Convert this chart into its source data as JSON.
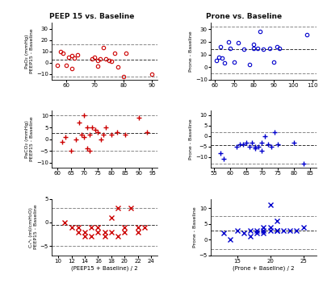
{
  "title_left": "PEEP 15 vs. Baseline",
  "title_right": "Prone vs. Baseline",
  "xlabel_left": "(PEEP15 + Baseline) / 2",
  "xlabel_right": "(Prone + Baseline) / 2",
  "ax00": {
    "x": [
      57,
      58,
      59,
      60,
      61,
      62,
      62,
      63,
      64,
      69,
      70,
      71,
      71,
      72,
      73,
      74,
      75,
      76,
      77,
      78,
      80,
      81,
      90
    ],
    "y": [
      -2,
      10,
      8,
      -2,
      5,
      6,
      -5,
      4,
      7,
      3,
      5,
      2,
      -3,
      3,
      13,
      3,
      2,
      1,
      8,
      -4,
      -12,
      8,
      -10
    ],
    "mean": 2.5,
    "loa_upper": 16.5,
    "loa_lower": -12.0,
    "xlim": [
      55,
      92
    ],
    "ylim": [
      -15,
      35
    ],
    "xticks": [
      60,
      70,
      80,
      90
    ],
    "yticks": [
      -10,
      0,
      10,
      20,
      30
    ],
    "ylabel": "PaO₂ (mmHg)\nPEEP15 - Baseline",
    "marker": "o",
    "color": "#cc0000"
  },
  "ax01": {
    "x": [
      61,
      62,
      63,
      64,
      65,
      67,
      68,
      70,
      72,
      75,
      78,
      80,
      80,
      82,
      83,
      85,
      88,
      90,
      92,
      93,
      107
    ],
    "y": [
      5,
      8,
      16,
      7,
      3,
      20,
      15,
      4,
      19,
      14,
      2,
      18,
      15,
      15,
      28,
      14,
      15,
      4,
      16,
      15,
      26
    ],
    "mean": 14.5,
    "loa_upper": 32.0,
    "loa_lower": -5.0,
    "xlim": [
      58,
      112
    ],
    "ylim": [
      -10,
      35
    ],
    "xticks": [
      60,
      70,
      80,
      90,
      100,
      110
    ],
    "yticks": [
      -10,
      0,
      10,
      20,
      30
    ],
    "ylabel": "Prone - Baseline",
    "marker": "o",
    "color": "#0000cc"
  },
  "ax10": {
    "x": [
      62,
      63,
      65,
      67,
      68,
      69,
      70,
      70,
      71,
      71,
      72,
      72,
      73,
      74,
      75,
      76,
      77,
      78,
      80,
      82,
      85,
      90,
      93
    ],
    "y": [
      -1,
      1,
      -5,
      0,
      7,
      2,
      10,
      1,
      5,
      -4,
      2,
      -5,
      5,
      4,
      3,
      0,
      2,
      5,
      2,
      3,
      2,
      9,
      3
    ],
    "mean": 2.5,
    "loa_upper": 10.0,
    "loa_lower": -5.0,
    "xlim": [
      58,
      97
    ],
    "ylim": [
      -12,
      12
    ],
    "xticks": [
      60,
      65,
      70,
      75,
      80,
      85,
      90,
      95
    ],
    "yticks": [
      -10,
      -5,
      0,
      5,
      10
    ],
    "ylabel": "PaCO₂ (mmHg)\nPEEP15 - Baseline",
    "marker": "+",
    "color": "#cc0000"
  },
  "ax11": {
    "x": [
      57,
      58,
      62,
      63,
      64,
      65,
      66,
      67,
      68,
      68,
      69,
      70,
      70,
      71,
      72,
      73,
      74,
      75,
      80,
      83
    ],
    "y": [
      -8,
      -11,
      -5,
      -4,
      -4,
      -3,
      -5,
      -3,
      -5,
      -6,
      -5,
      -7,
      -3,
      0,
      -4,
      -5,
      2,
      -4,
      -3,
      -13
    ],
    "mean": -4.5,
    "loa_upper": 2.0,
    "loa_lower": -13.0,
    "xlim": [
      54,
      87
    ],
    "ylim": [
      -15,
      12
    ],
    "xticks": [
      55,
      60,
      65,
      70,
      75,
      80,
      85
    ],
    "yticks": [
      -10,
      -5,
      0,
      5,
      10
    ],
    "ylabel": "Prone - Baseline",
    "marker": "+",
    "color": "#0000cc"
  },
  "ax20": {
    "x": [
      11,
      12,
      13,
      13,
      14,
      14,
      15,
      15,
      16,
      16,
      17,
      17,
      18,
      18,
      19,
      19,
      20,
      20,
      21,
      22,
      22,
      23
    ],
    "y": [
      0,
      -1,
      -2,
      -1,
      -3,
      -2,
      -1,
      -3,
      -2,
      -1,
      -3,
      -2,
      1,
      -2,
      -3,
      3,
      -2,
      -1,
      3,
      -2,
      -1,
      -1
    ],
    "mean": -0.5,
    "loa_upper": 3.0,
    "loa_lower": -5.0,
    "xlim": [
      9,
      25
    ],
    "ylim": [
      -7,
      5
    ],
    "xticks": [
      10,
      12,
      14,
      16,
      18,
      20,
      22,
      24
    ],
    "yticks": [
      -5,
      0,
      5
    ],
    "ylabel": "Cₛᵘₜ (ml/cmH₂O)\nPEEP15 - Baseline",
    "marker": "x",
    "color": "#cc0000"
  },
  "ax21": {
    "x": [
      13,
      14,
      15,
      16,
      17,
      17,
      18,
      18,
      19,
      19,
      19,
      20,
      20,
      20,
      21,
      21,
      21,
      22,
      23,
      24,
      25
    ],
    "y": [
      2,
      0,
      3,
      2,
      3,
      1,
      3,
      2,
      3,
      4,
      2,
      3,
      4,
      11,
      3,
      3,
      6,
      3,
      3,
      3,
      4
    ],
    "mean": 3.0,
    "loa_upper": 7.5,
    "loa_lower": -3.0,
    "xlim": [
      11,
      27
    ],
    "ylim": [
      -5,
      13
    ],
    "xticks": [
      15,
      20,
      25
    ],
    "yticks": [
      -5,
      0,
      5,
      10
    ],
    "ylabel": "Prone - Baseline",
    "marker": "x",
    "color": "#0000cc"
  },
  "red": "#cc0000",
  "blue": "#0000cc",
  "mean_color": "#333333",
  "loa_color": "#888888",
  "bg_color": "#ffffff"
}
